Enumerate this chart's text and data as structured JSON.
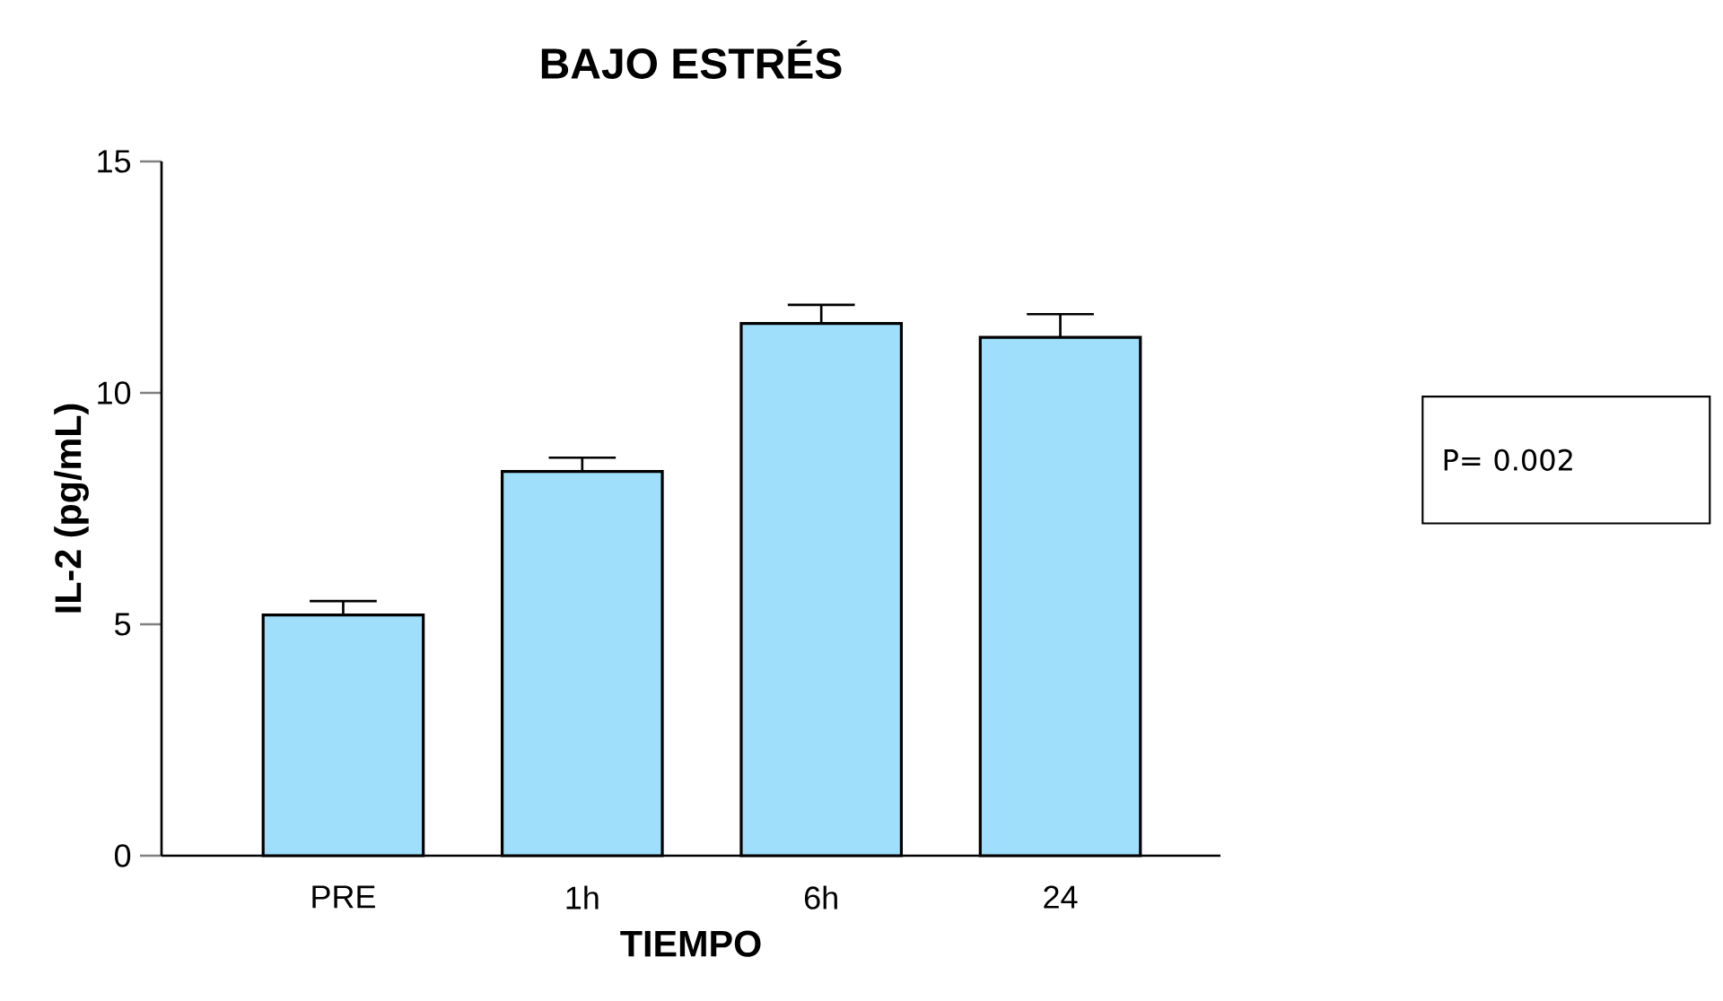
{
  "chart_data": {
    "type": "bar",
    "title": "BAJO ESTRÉS",
    "xlabel": "TIEMPO",
    "ylabel": "IL-2 (pg/mL)",
    "categories": [
      "PRE",
      "1h",
      "6h",
      "24"
    ],
    "values": [
      5.2,
      8.3,
      11.5,
      11.2
    ],
    "errors": [
      0.3,
      0.3,
      0.4,
      0.5
    ],
    "color": "#a0dffc",
    "ylim": [
      0,
      15
    ],
    "yticks": [
      0,
      5,
      10,
      15
    ],
    "annotations": [
      "P= 0.002"
    ]
  }
}
